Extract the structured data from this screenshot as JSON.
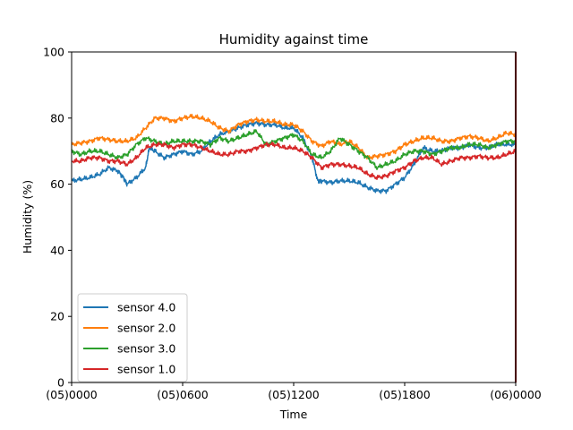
{
  "chart_data": {
    "type": "line",
    "title": "Humidity against  time",
    "xlabel": "Time",
    "ylabel": "Humidity (%)",
    "ylim": [
      0,
      100
    ],
    "xlim": [
      0,
      24
    ],
    "x_unit": "hours from (05)0000",
    "xticks": [
      {
        "value": 0,
        "label": "(05)0000"
      },
      {
        "value": 6,
        "label": "(05)0600"
      },
      {
        "value": 12,
        "label": "(05)1200"
      },
      {
        "value": 18,
        "label": "(05)1800"
      },
      {
        "value": 24,
        "label": "(06)0000"
      }
    ],
    "yticks": [
      0,
      20,
      40,
      60,
      80,
      100
    ],
    "grid": false,
    "legend_position": "lower-left",
    "vertical_marker": {
      "x": 24,
      "color": "#8b0000"
    },
    "series": [
      {
        "name": "sensor 4.0",
        "color": "#1f77b4",
        "x": [
          0,
          0.5,
          1,
          1.5,
          2,
          2.5,
          2.8,
          3,
          3.5,
          4,
          4.2,
          4.5,
          5,
          5.5,
          6,
          6.5,
          7,
          7.5,
          8,
          8.5,
          9,
          9.5,
          10,
          10.5,
          11,
          11.5,
          12,
          12.5,
          13,
          13.3,
          13.5,
          14,
          14.5,
          15,
          15.5,
          16,
          16.5,
          17,
          17.5,
          18,
          18.5,
          19,
          19.5,
          20,
          20.5,
          21,
          21.5,
          22,
          22.5,
          23,
          23.5,
          24
        ],
        "values": [
          61,
          61.5,
          62,
          63,
          65,
          64,
          62,
          60,
          62,
          65,
          71,
          70,
          68,
          69,
          70,
          69,
          70,
          73,
          75,
          76,
          77,
          78,
          78.5,
          78,
          78,
          77,
          77,
          74,
          68,
          61,
          61,
          60.5,
          61,
          61,
          60.5,
          59,
          58,
          58,
          60,
          62,
          66,
          71,
          70,
          70,
          71,
          71,
          72,
          71,
          71,
          72,
          72,
          72
        ]
      },
      {
        "name": "sensor 2.0",
        "color": "#ff7f0e",
        "x": [
          0,
          0.5,
          1,
          1.5,
          2,
          2.5,
          3,
          3.5,
          4,
          4.5,
          5,
          5.5,
          6,
          6.5,
          7,
          7.5,
          8,
          8.5,
          9,
          9.5,
          10,
          10.5,
          11,
          11.5,
          12,
          12.5,
          13,
          13.5,
          14,
          14.5,
          15,
          15.5,
          16,
          16.5,
          17,
          17.5,
          18,
          18.5,
          19,
          19.5,
          20,
          20.5,
          21,
          21.5,
          22,
          22.5,
          23,
          23.5,
          24
        ],
        "values": [
          72,
          72.5,
          73,
          74,
          73.5,
          73,
          73,
          74,
          77,
          80,
          80,
          79,
          80,
          80.5,
          80,
          79,
          77,
          76,
          78,
          79,
          79.5,
          79,
          79,
          78,
          78,
          76,
          73,
          71.5,
          73,
          72,
          73,
          71,
          68,
          68.5,
          69,
          70,
          72,
          73,
          74,
          74,
          73,
          73,
          74,
          74.5,
          74,
          73,
          74,
          75.5,
          75
        ]
      },
      {
        "name": "sensor 3.0",
        "color": "#2ca02c",
        "x": [
          0,
          0.5,
          1,
          1.5,
          2,
          2.5,
          3,
          3.5,
          4,
          4.5,
          5,
          5.5,
          6,
          6.5,
          7,
          7.5,
          8,
          8.5,
          9,
          9.5,
          10,
          10.5,
          11,
          11.5,
          12,
          12.5,
          13,
          13.5,
          14,
          14.5,
          15,
          15.5,
          16,
          16.5,
          17,
          17.5,
          18,
          18.5,
          19,
          19.5,
          20,
          20.5,
          21,
          21.5,
          22,
          22.5,
          23,
          23.5,
          24
        ],
        "values": [
          70,
          69,
          70,
          70,
          69,
          68,
          69,
          72,
          74,
          73,
          72,
          73,
          73,
          73,
          73,
          72,
          74,
          73,
          74,
          75,
          76,
          72,
          73,
          74,
          75,
          73,
          69,
          68,
          70,
          74,
          72,
          70,
          68,
          65,
          66,
          67,
          69,
          70,
          70,
          69,
          70,
          71,
          71,
          72,
          72,
          71,
          72,
          73,
          73
        ]
      },
      {
        "name": "sensor 1.0",
        "color": "#d62728",
        "x": [
          0,
          0.5,
          1,
          1.5,
          2,
          2.5,
          3,
          3.5,
          4,
          4.5,
          5,
          5.5,
          6,
          6.5,
          7,
          7.5,
          8,
          8.5,
          9,
          9.5,
          10,
          10.5,
          11,
          11.5,
          12,
          12.5,
          13,
          13.5,
          14,
          14.5,
          15,
          15.5,
          16,
          16.5,
          17,
          17.5,
          18,
          18.5,
          19,
          19.5,
          20,
          20.5,
          21,
          21.5,
          22,
          22.5,
          23,
          23.5,
          24
        ],
        "values": [
          67,
          67,
          68,
          68,
          67,
          67,
          66,
          68,
          71,
          72,
          72,
          71,
          72,
          72,
          71,
          70,
          69,
          69,
          70,
          70,
          71,
          72,
          72,
          71,
          71,
          70,
          68,
          65,
          66,
          66,
          65.5,
          65,
          63,
          62,
          62.5,
          64,
          65,
          67,
          68,
          68,
          66,
          67,
          68,
          68,
          68.5,
          68,
          68,
          69,
          70
        ]
      }
    ]
  }
}
